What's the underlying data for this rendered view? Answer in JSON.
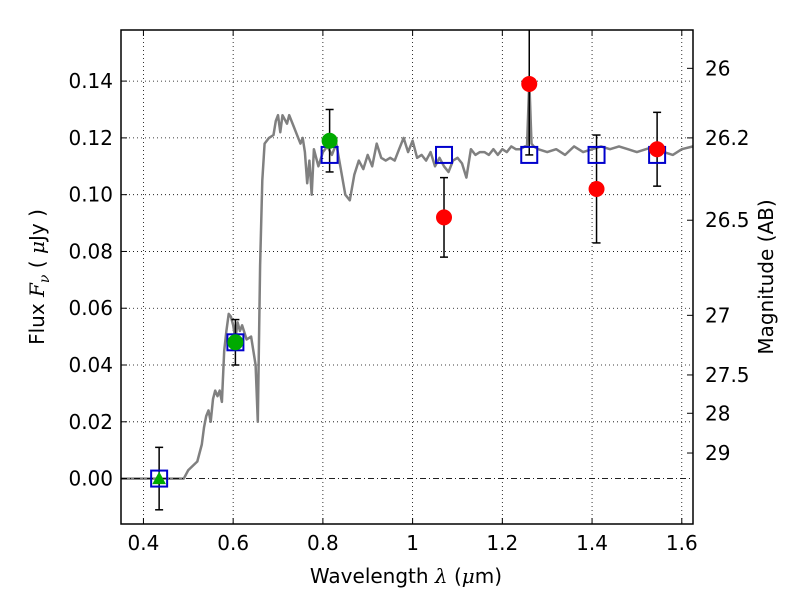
{
  "chart_data": {
    "type": "scatter",
    "xlabel": "Wavelength  λ (μm)",
    "ylabel": "Flux  Fν  ( μJy )",
    "ylabel_right": "Magnitude (AB)",
    "xlim": [
      0.35,
      1.625
    ],
    "ylim": [
      -0.016,
      0.158
    ],
    "grid": true,
    "x_ticks": [
      0.4,
      0.6,
      0.8,
      1.0,
      1.2,
      1.4,
      1.6
    ],
    "x_tick_labels": [
      "0.4",
      "0.6",
      "0.8",
      "1",
      "1.2",
      "1.4",
      "1.6"
    ],
    "y_ticks": [
      0.0,
      0.02,
      0.04,
      0.06,
      0.08,
      0.1,
      0.12,
      0.14
    ],
    "y_tick_labels": [
      "0.00",
      "0.02",
      "0.04",
      "0.06",
      "0.08",
      "0.10",
      "0.12",
      "0.14"
    ],
    "right_ticks": [
      {
        "label": "26",
        "flux": 0.1445
      },
      {
        "label": "26.2",
        "flux": 0.12
      },
      {
        "label": "26.5",
        "flux": 0.091
      },
      {
        "label": "27",
        "flux": 0.0575
      },
      {
        "label": "27.5",
        "flux": 0.0365
      },
      {
        "label": "28",
        "flux": 0.023
      },
      {
        "label": "29",
        "flux": 0.009
      }
    ],
    "series": [
      {
        "kind": "sed_model",
        "color": "#808080",
        "points": [
          [
            0.35,
            0.0
          ],
          [
            0.48,
            0.0
          ],
          [
            0.49,
            0.0
          ],
          [
            0.5,
            0.003
          ],
          [
            0.52,
            0.006
          ],
          [
            0.53,
            0.012
          ],
          [
            0.535,
            0.018
          ],
          [
            0.54,
            0.022
          ],
          [
            0.545,
            0.024
          ],
          [
            0.55,
            0.02
          ],
          [
            0.555,
            0.028
          ],
          [
            0.56,
            0.031
          ],
          [
            0.565,
            0.029
          ],
          [
            0.57,
            0.031
          ],
          [
            0.575,
            0.027
          ],
          [
            0.58,
            0.045
          ],
          [
            0.585,
            0.052
          ],
          [
            0.59,
            0.058
          ],
          [
            0.595,
            0.057
          ],
          [
            0.6,
            0.054
          ],
          [
            0.605,
            0.049
          ],
          [
            0.61,
            0.055
          ],
          [
            0.615,
            0.052
          ],
          [
            0.62,
            0.054
          ],
          [
            0.63,
            0.049
          ],
          [
            0.64,
            0.05
          ],
          [
            0.65,
            0.04
          ],
          [
            0.655,
            0.02
          ],
          [
            0.66,
            0.075
          ],
          [
            0.665,
            0.105
          ],
          [
            0.67,
            0.118
          ],
          [
            0.68,
            0.12
          ],
          [
            0.69,
            0.121
          ],
          [
            0.695,
            0.126
          ],
          [
            0.7,
            0.128
          ],
          [
            0.705,
            0.122
          ],
          [
            0.71,
            0.128
          ],
          [
            0.72,
            0.125
          ],
          [
            0.725,
            0.128
          ],
          [
            0.735,
            0.124
          ],
          [
            0.745,
            0.12
          ],
          [
            0.75,
            0.118
          ],
          [
            0.755,
            0.12
          ],
          [
            0.76,
            0.115
          ],
          [
            0.765,
            0.104
          ],
          [
            0.77,
            0.112
          ],
          [
            0.775,
            0.1
          ],
          [
            0.78,
            0.116
          ],
          [
            0.79,
            0.11
          ],
          [
            0.8,
            0.115
          ],
          [
            0.81,
            0.117
          ],
          [
            0.82,
            0.114
          ],
          [
            0.83,
            0.118
          ],
          [
            0.84,
            0.109
          ],
          [
            0.85,
            0.1
          ],
          [
            0.86,
            0.098
          ],
          [
            0.87,
            0.107
          ],
          [
            0.88,
            0.112
          ],
          [
            0.89,
            0.109
          ],
          [
            0.9,
            0.114
          ],
          [
            0.91,
            0.11
          ],
          [
            0.92,
            0.118
          ],
          [
            0.93,
            0.113
          ],
          [
            0.94,
            0.112
          ],
          [
            0.95,
            0.113
          ],
          [
            0.96,
            0.112
          ],
          [
            0.97,
            0.116
          ],
          [
            0.98,
            0.12
          ],
          [
            0.99,
            0.115
          ],
          [
            1.0,
            0.119
          ],
          [
            1.01,
            0.113
          ],
          [
            1.02,
            0.114
          ],
          [
            1.03,
            0.112
          ],
          [
            1.04,
            0.115
          ],
          [
            1.05,
            0.11
          ],
          [
            1.06,
            0.113
          ],
          [
            1.07,
            0.11
          ],
          [
            1.08,
            0.108
          ],
          [
            1.09,
            0.112
          ],
          [
            1.1,
            0.113
          ],
          [
            1.11,
            0.111
          ],
          [
            1.12,
            0.106
          ],
          [
            1.13,
            0.116
          ],
          [
            1.14,
            0.114
          ],
          [
            1.15,
            0.115
          ],
          [
            1.16,
            0.115
          ],
          [
            1.17,
            0.114
          ],
          [
            1.18,
            0.116
          ],
          [
            1.19,
            0.114
          ],
          [
            1.2,
            0.116
          ],
          [
            1.21,
            0.115
          ],
          [
            1.22,
            0.117
          ],
          [
            1.23,
            0.116
          ],
          [
            1.24,
            0.116
          ],
          [
            1.25,
            0.117
          ],
          [
            1.255,
            0.117
          ],
          [
            1.26,
            0.14
          ],
          [
            1.265,
            0.118
          ],
          [
            1.27,
            0.117
          ],
          [
            1.28,
            0.116
          ],
          [
            1.3,
            0.115
          ],
          [
            1.32,
            0.116
          ],
          [
            1.34,
            0.114
          ],
          [
            1.36,
            0.117
          ],
          [
            1.38,
            0.115
          ],
          [
            1.4,
            0.116
          ],
          [
            1.42,
            0.117
          ],
          [
            1.44,
            0.116
          ],
          [
            1.46,
            0.117
          ],
          [
            1.48,
            0.116
          ],
          [
            1.5,
            0.115
          ],
          [
            1.52,
            0.116
          ],
          [
            1.54,
            0.117
          ],
          [
            1.56,
            0.115
          ],
          [
            1.58,
            0.114
          ],
          [
            1.6,
            0.116
          ],
          [
            1.625,
            0.117
          ]
        ]
      },
      {
        "kind": "model_photometry",
        "marker": "open-square",
        "color": "#0000cc",
        "points": [
          [
            0.435,
            0.0
          ],
          [
            0.605,
            0.048
          ],
          [
            0.815,
            0.114
          ],
          [
            1.07,
            0.114
          ],
          [
            1.26,
            0.114
          ],
          [
            1.41,
            0.114
          ],
          [
            1.545,
            0.114
          ]
        ]
      },
      {
        "kind": "upper_limit",
        "marker": "triangle",
        "color": "#00aa00",
        "points": [
          {
            "x": 0.435,
            "y": 0.0,
            "err": 0.011
          }
        ]
      },
      {
        "kind": "optical_detections",
        "marker": "circle",
        "color": "#00aa00",
        "points": [
          {
            "x": 0.605,
            "y": 0.048,
            "err": 0.008
          },
          {
            "x": 0.815,
            "y": 0.119,
            "err": 0.011
          }
        ]
      },
      {
        "kind": "nir_detections",
        "marker": "circle",
        "color": "#ff0000",
        "points": [
          {
            "x": 1.07,
            "y": 0.092,
            "err": 0.014
          },
          {
            "x": 1.26,
            "y": 0.139,
            "err": 0.025
          },
          {
            "x": 1.41,
            "y": 0.102,
            "err": 0.019
          },
          {
            "x": 1.545,
            "y": 0.116,
            "err": 0.013
          }
        ]
      }
    ],
    "colors": {
      "zero_line": "#000000",
      "grid": "#000000"
    }
  }
}
